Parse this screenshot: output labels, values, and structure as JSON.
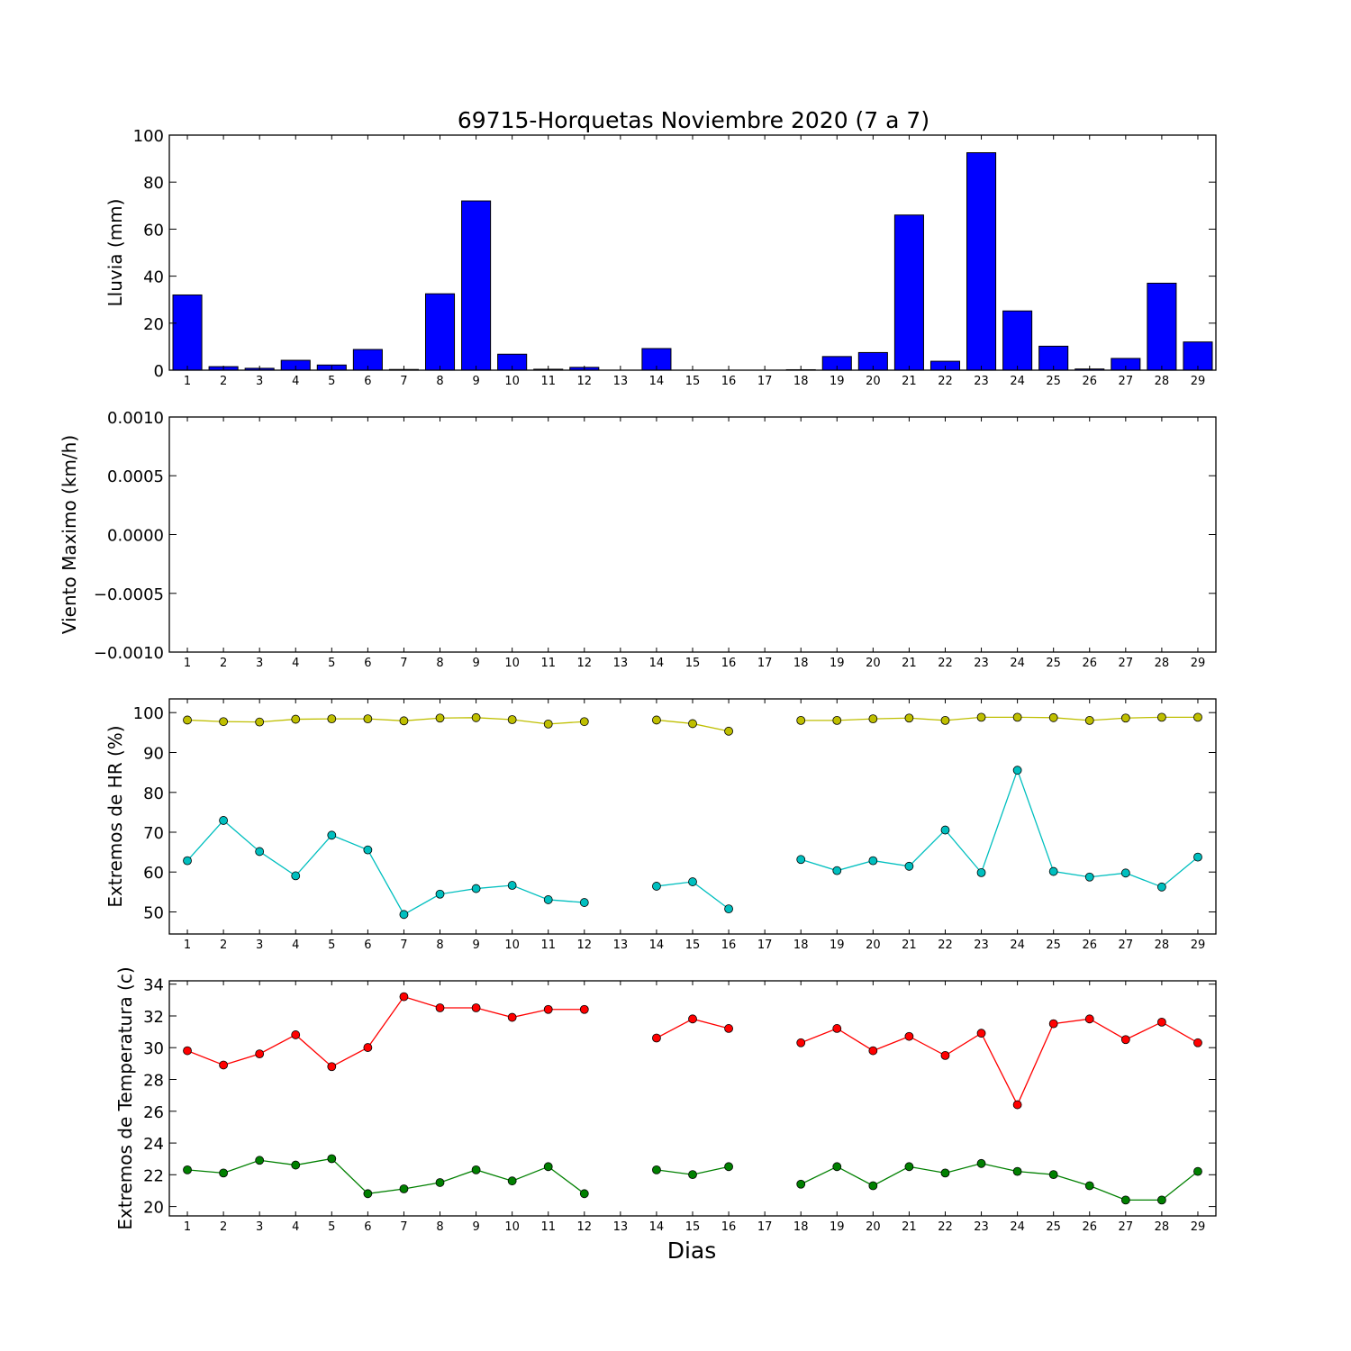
{
  "chart_data": [
    {
      "type": "bar",
      "title": "69715-Horquetas Noviembre 2020  (7 a 7)",
      "ylabel": "Lluvia (mm)",
      "xlabel": "",
      "ylim": [
        0,
        100
      ],
      "yticks": [
        "0",
        "20",
        "40",
        "60",
        "80",
        "100"
      ],
      "categories": [
        "1",
        "2",
        "3",
        "4",
        "5",
        "6",
        "7",
        "8",
        "9",
        "10",
        "11",
        "12",
        "13",
        "14",
        "15",
        "16",
        "17",
        "18",
        "19",
        "20",
        "21",
        "22",
        "23",
        "24",
        "25",
        "26",
        "27",
        "28",
        "29"
      ],
      "values": [
        32,
        1.5,
        0.8,
        4.2,
        2.2,
        8.8,
        0.3,
        32.5,
        72,
        6.8,
        0.4,
        1.2,
        0,
        9.2,
        0,
        0,
        0,
        0.2,
        5.8,
        7.5,
        66,
        3.8,
        92.5,
        25.2,
        10.2,
        0.5,
        5,
        37,
        12
      ],
      "bar_color": "#0000ff",
      "grid": false
    },
    {
      "type": "line",
      "title": "",
      "ylabel": "Viento Maximo (km/h)",
      "xlabel": "",
      "ylim": [
        -0.001,
        0.001
      ],
      "yticks": [
        "−0.0010",
        "−0.0005",
        "0.0000",
        "0.0005",
        "0.0010"
      ],
      "categories": [
        "1",
        "2",
        "3",
        "4",
        "5",
        "6",
        "7",
        "8",
        "9",
        "10",
        "11",
        "12",
        "13",
        "14",
        "15",
        "16",
        "17",
        "18",
        "19",
        "20",
        "21",
        "22",
        "23",
        "24",
        "25",
        "26",
        "27",
        "28",
        "29"
      ],
      "series": [],
      "grid": false
    },
    {
      "type": "line",
      "title": "",
      "ylabel": "Extremos de HR (%)",
      "xlabel": "",
      "ylim": [
        44.5,
        103.5
      ],
      "yticks": [
        "50",
        "60",
        "70",
        "80",
        "90",
        "100"
      ],
      "categories": [
        "1",
        "2",
        "3",
        "4",
        "5",
        "6",
        "7",
        "8",
        "9",
        "10",
        "11",
        "12",
        "13",
        "14",
        "15",
        "16",
        "17",
        "18",
        "19",
        "20",
        "21",
        "22",
        "23",
        "24",
        "25",
        "26",
        "27",
        "28",
        "29"
      ],
      "series": [
        {
          "color": "#bfbf00",
          "values": [
            98.2,
            97.8,
            97.7,
            98.4,
            98.5,
            98.5,
            98.0,
            98.7,
            98.8,
            98.3,
            97.2,
            97.8,
            null,
            98.2,
            97.3,
            95.4,
            null,
            98.1,
            98.1,
            98.5,
            98.7,
            98.1,
            98.9,
            98.9,
            98.8,
            98.1,
            98.7,
            98.9,
            98.9
          ]
        },
        {
          "color": "#00bfbf",
          "values": [
            62.9,
            73.0,
            65.2,
            59.1,
            69.3,
            65.6,
            49.4,
            54.5,
            55.9,
            56.7,
            53.1,
            52.4,
            null,
            56.5,
            57.6,
            50.8,
            null,
            63.2,
            60.4,
            62.9,
            61.5,
            70.6,
            59.9,
            85.6,
            60.2,
            58.8,
            59.8,
            56.3,
            63.8
          ]
        }
      ],
      "grid": false
    },
    {
      "type": "line",
      "title": "",
      "ylabel": "Extremos de Temperatura (c)",
      "xlabel": "Dias",
      "ylim": [
        19.4,
        34.2
      ],
      "yticks": [
        "20",
        "22",
        "24",
        "26",
        "28",
        "30",
        "32",
        "34"
      ],
      "categories": [
        "1",
        "2",
        "3",
        "4",
        "5",
        "6",
        "7",
        "8",
        "9",
        "10",
        "11",
        "12",
        "13",
        "14",
        "15",
        "16",
        "17",
        "18",
        "19",
        "20",
        "21",
        "22",
        "23",
        "24",
        "25",
        "26",
        "27",
        "28",
        "29"
      ],
      "series": [
        {
          "color": "#ff0000",
          "values": [
            29.8,
            28.9,
            29.6,
            30.8,
            28.8,
            30.0,
            33.2,
            32.5,
            32.5,
            31.9,
            32.4,
            32.4,
            null,
            30.6,
            31.8,
            31.2,
            null,
            30.3,
            31.2,
            29.8,
            30.7,
            29.5,
            30.9,
            26.4,
            31.5,
            31.8,
            30.5,
            31.6,
            30.3
          ]
        },
        {
          "color": "#008000",
          "values": [
            22.3,
            22.1,
            22.9,
            22.6,
            23.0,
            20.8,
            21.1,
            21.5,
            22.3,
            21.6,
            22.5,
            20.8,
            null,
            22.3,
            22.0,
            22.5,
            null,
            21.4,
            22.5,
            21.3,
            22.5,
            22.1,
            22.7,
            22.2,
            22.0,
            21.3,
            20.4,
            20.4,
            22.2
          ]
        }
      ],
      "grid": false
    }
  ]
}
